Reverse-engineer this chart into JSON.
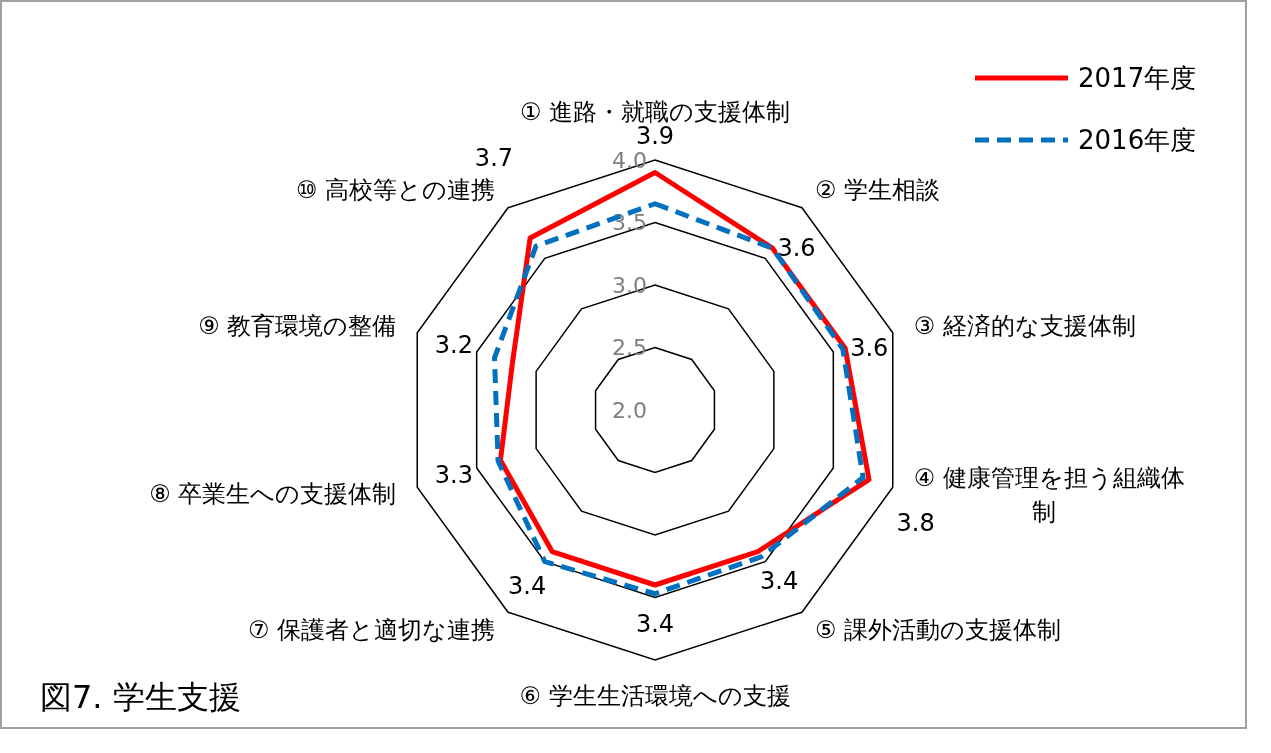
{
  "chart_data": {
    "type": "radar",
    "title": "図7. 学生支援",
    "categories": [
      "① 進路・就職の支援体制",
      "② 学生相談",
      "③ 経済的な支援体制",
      "④ 健康管理を担う組織体制",
      "⑤ 課外活動の支援体制",
      "⑥ 学生生活環境への支援",
      "⑦ 保護者と適切な連携",
      "⑧ 卒業生への支援体制",
      "⑨ 教育環境の整備",
      "⑩ 高校等との連携"
    ],
    "series": [
      {
        "name": "2017年度",
        "color": "#ff0000",
        "line_style": "solid",
        "values": [
          3.9,
          3.6,
          3.6,
          3.8,
          3.4,
          3.4,
          3.4,
          3.3,
          3.2,
          3.7
        ],
        "value_labels": [
          "3.9",
          "3.6",
          "3.6",
          "3.8",
          "3.4",
          "3.4",
          "3.4",
          "3.3",
          "3.2",
          "3.7"
        ]
      },
      {
        "name": "2016年度",
        "color": "#0070c0",
        "line_style": "dashed",
        "values": [
          3.65,
          3.6,
          3.58,
          3.75,
          3.45,
          3.47,
          3.5,
          3.32,
          3.35,
          3.62
        ]
      }
    ],
    "ylim": [
      2.0,
      4.0
    ],
    "yticks": [
      {
        "value": 2,
        "label": "2.0"
      },
      {
        "value": 2.5,
        "label": "2.5"
      },
      {
        "value": 3,
        "label": "3.0"
      },
      {
        "value": 3.5,
        "label": "3.5"
      },
      {
        "value": 4,
        "label": "4.0"
      }
    ],
    "grid": true,
    "legend": "top right",
    "marker": "none"
  }
}
